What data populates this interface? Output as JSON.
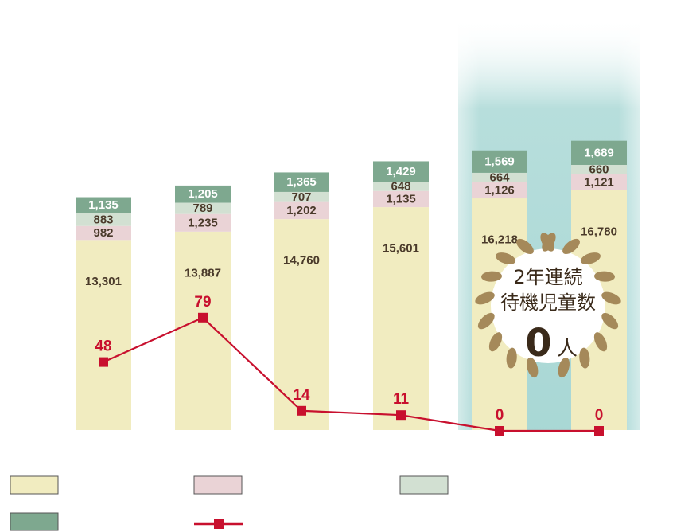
{
  "chart_data": {
    "type": "bar",
    "stacked": true,
    "categories": [
      "",
      "",
      "",
      "",
      "",
      ""
    ],
    "series": [
      {
        "values": [
          13301,
          13887,
          14760,
          15601,
          16218,
          16780
        ],
        "color": "#f1ecc0"
      },
      {
        "values": [
          982,
          1235,
          1202,
          1135,
          1126,
          1121
        ],
        "color": "#ead3d6"
      },
      {
        "values": [
          883,
          789,
          707,
          648,
          664,
          660
        ],
        "color": "#d2e0d2"
      },
      {
        "values": [
          1135,
          1205,
          1365,
          1429,
          1569,
          1689
        ],
        "color": "#7ea88f"
      }
    ],
    "line_series": {
      "values": [
        48,
        79,
        14,
        11,
        0,
        0
      ],
      "color": "#c8102e"
    },
    "value_labels": {
      "s0": [
        "13,301",
        "13,887",
        "14,760",
        "15,601",
        "16,218",
        "16,780"
      ],
      "s1": [
        "982",
        "1,235",
        "1,202",
        "1,135",
        "1,126",
        "1,121"
      ],
      "s2": [
        "883",
        "789",
        "707",
        "648",
        "664",
        "660"
      ],
      "s3": [
        "1,135",
        "1,205",
        "1,365",
        "1,429",
        "1,569",
        "1,689"
      ],
      "line": [
        "48",
        "79",
        "14",
        "11",
        "0",
        "0"
      ]
    },
    "highlight_columns": [
      4,
      5
    ],
    "highlight_color": "#9fd3d0",
    "legend": [
      "",
      "",
      "",
      "",
      ""
    ],
    "legend_placement": "bottom"
  },
  "badge": {
    "line1": "2年連続",
    "line2": "待機児童数",
    "zero": "0",
    "unit": "人",
    "laurel_color": "#a5895a"
  }
}
